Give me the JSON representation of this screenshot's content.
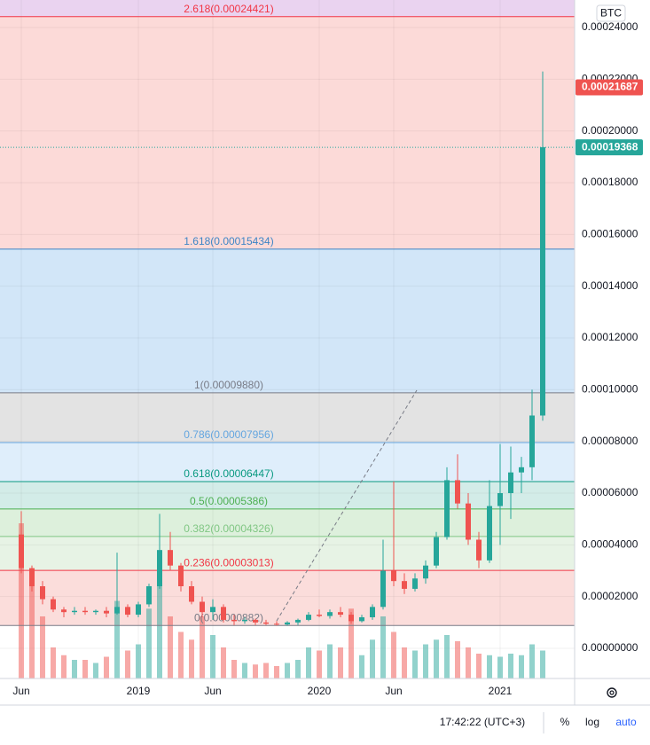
{
  "chart_data": {
    "type": "candlestick",
    "currency": "BTC",
    "categories": [
      "Jun",
      null,
      null,
      null,
      null,
      null,
      null,
      null,
      null,
      null,
      null,
      "2019",
      null,
      null,
      null,
      null,
      null,
      null,
      "Jun",
      null,
      null,
      null,
      null,
      null,
      null,
      null,
      null,
      null,
      "2020",
      null,
      null,
      null,
      null,
      null,
      null,
      "Jun",
      null,
      null,
      null,
      null,
      null,
      null,
      null,
      null,
      null,
      "2021",
      null,
      null,
      null,
      null
    ],
    "open": [
      4.4e-05,
      3.1e-05,
      2.4e-05,
      1.9e-05,
      1.5e-05,
      1.4e-05,
      1.45e-05,
      1.4e-05,
      1.45e-05,
      1.35e-05,
      1.6e-05,
      1.3e-05,
      1.7e-05,
      2.4e-05,
      3.8e-05,
      3.2e-05,
      2.4e-05,
      1.8e-05,
      1.4e-05,
      1.6e-05,
      1.1e-05,
      1.05e-05,
      1.1e-05,
      1e-05,
      9.5e-06,
      9.2e-06,
      1e-05,
      1.1e-05,
      1.3e-05,
      1.25e-05,
      1.4e-05,
      1.3e-05,
      1.05e-05,
      1.2e-05,
      1.6e-05,
      3e-05,
      2.6e-05,
      2.3e-05,
      2.7e-05,
      3.2e-05,
      4.3e-05,
      6.5e-05,
      5.6e-05,
      4.2e-05,
      3.4e-05,
      5.5e-05,
      6e-05,
      6.8e-05,
      7e-05,
      9e-05
    ],
    "high": [
      5.3e-05,
      3.2e-05,
      2.6e-05,
      2e-05,
      1.6e-05,
      1.6e-05,
      1.6e-05,
      1.5e-05,
      1.6e-05,
      3.7e-05,
      1.7e-05,
      1.8e-05,
      2.5e-05,
      5.2e-05,
      4.5e-05,
      3.3e-05,
      2.6e-05,
      2e-05,
      1.9e-05,
      1.7e-05,
      1.3e-05,
      1.2e-05,
      1.15e-05,
      1.1e-05,
      1.05e-05,
      1.05e-05,
      1.15e-05,
      1.4e-05,
      1.5e-05,
      1.5e-05,
      1.6e-05,
      1.4e-05,
      1.3e-05,
      1.7e-05,
      4.2e-05,
      6.45e-05,
      2.9e-05,
      2.9e-05,
      3.4e-05,
      4.5e-05,
      7e-05,
      7.5e-05,
      6e-05,
      4.5e-05,
      6.5e-05,
      7.9e-05,
      7.8e-05,
      7.4e-05,
      0.0001,
      0.000223
    ],
    "low": [
      2.9e-05,
      2.2e-05,
      1.7e-05,
      1.4e-05,
      1.2e-05,
      1.3e-05,
      1.3e-05,
      1.3e-05,
      1.2e-05,
      1.3e-05,
      1.2e-05,
      1.2e-05,
      1.6e-05,
      2.3e-05,
      3e-05,
      2.2e-05,
      1.7e-05,
      1.2e-05,
      1.1e-05,
      1e-05,
      9e-06,
      9.5e-06,
      9e-06,
      9e-06,
      8.8e-06,
      8.8e-06,
      9e-06,
      1.05e-05,
      1.2e-05,
      1.15e-05,
      1.2e-05,
      9.5e-06,
      1e-05,
      1.1e-05,
      1.5e-05,
      2.4e-05,
      2.1e-05,
      2.2e-05,
      2.5e-05,
      3.1e-05,
      4.2e-05,
      5.4e-05,
      4e-05,
      3.1e-05,
      3.3e-05,
      4e-05,
      5e-05,
      6e-05,
      6.5e-05,
      8.8e-05
    ],
    "close": [
      3.1e-05,
      2.4e-05,
      1.9e-05,
      1.5e-05,
      1.4e-05,
      1.45e-05,
      1.4e-05,
      1.45e-05,
      1.35e-05,
      1.6e-05,
      1.3e-05,
      1.7e-05,
      2.4e-05,
      3.8e-05,
      3.2e-05,
      2.4e-05,
      1.8e-05,
      1.4e-05,
      1.6e-05,
      1.1e-05,
      1.05e-05,
      1.1e-05,
      1e-05,
      9.5e-06,
      9.2e-06,
      1e-05,
      1.1e-05,
      1.3e-05,
      1.25e-05,
      1.4e-05,
      1.3e-05,
      1.05e-05,
      1.2e-05,
      1.6e-05,
      3e-05,
      2.6e-05,
      2.3e-05,
      2.7e-05,
      3.2e-05,
      4.3e-05,
      6.5e-05,
      5.6e-05,
      4.2e-05,
      3.4e-05,
      5.5e-05,
      6e-05,
      6.8e-05,
      7e-05,
      9e-05,
      0.0001937
    ],
    "volume": [
      100,
      60,
      40,
      20,
      15,
      12,
      12,
      10,
      14,
      50,
      18,
      22,
      45,
      60,
      40,
      30,
      25,
      40,
      28,
      20,
      12,
      10,
      9,
      10,
      8,
      10,
      12,
      20,
      18,
      22,
      20,
      45,
      15,
      25,
      40,
      30,
      20,
      18,
      22,
      25,
      28,
      24,
      20,
      16,
      15,
      14,
      16,
      15,
      22,
      18
    ],
    "up_color": "#26a69a",
    "down_color": "#ef5350",
    "ylim": [
      0,
      0.00024
    ],
    "yticks": [
      {
        "value": 0.00024,
        "label": "0.00024000"
      },
      {
        "value": 0.00022,
        "label": "0.00022000"
      },
      {
        "value": 0.0002,
        "label": "0.00020000"
      },
      {
        "value": 0.00018,
        "label": "0.00018000"
      },
      {
        "value": 0.00016,
        "label": "0.00016000"
      },
      {
        "value": 0.00014,
        "label": "0.00014000"
      },
      {
        "value": 0.00012,
        "label": "0.00012000"
      },
      {
        "value": 0.0001,
        "label": "0.00010000"
      },
      {
        "value": 8e-05,
        "label": "0.00008000"
      },
      {
        "value": 6e-05,
        "label": "0.00006000"
      },
      {
        "value": 4e-05,
        "label": "0.00004000"
      },
      {
        "value": 2e-05,
        "label": "0.00002000"
      },
      {
        "value": 0,
        "label": "0.00000000"
      }
    ],
    "grid": true,
    "top_fill": "#ead3f0",
    "fib_levels": [
      {
        "label": "2.618(0.00024421)",
        "value": 0.00024421,
        "color": "#f23645",
        "fill": "#fcdad8"
      },
      {
        "label": "1.618(0.00015434)",
        "value": 0.00015434,
        "color": "#3d85c6",
        "fill": "#d2e6f8"
      },
      {
        "label": "1(0.00009880)",
        "value": 9.88e-05,
        "color": "#787b86",
        "fill": "#e3e3e3"
      },
      {
        "label": "0.786(0.00007956)",
        "value": 7.956e-05,
        "color": "#64a6e0",
        "fill": "#dfeefb"
      },
      {
        "label": "0.618(0.00006447)",
        "value": 6.447e-05,
        "color": "#089981",
        "fill": "#d3ece8"
      },
      {
        "label": "0.5(0.00005386)",
        "value": 5.386e-05,
        "color": "#4caf50",
        "fill": "#ddf0dc"
      },
      {
        "label": "0.382(0.00004326)",
        "value": 4.326e-05,
        "color": "#81c784",
        "fill": "#e7f3e5"
      },
      {
        "label": "0.236(0.00003013)",
        "value": 3.013e-05,
        "color": "#f23645",
        "fill": "#fbdddb"
      },
      {
        "label": "0(0.00000882)",
        "value": 8.82e-06,
        "color": "#787b86",
        "fill": "#ffffff"
      }
    ],
    "price_tags": [
      {
        "value": 0.00021687,
        "label": "0.00021687",
        "color": "#ef5350"
      },
      {
        "value": 0.00019368,
        "label": "0.00019368",
        "color": "#26a69a"
      }
    ]
  },
  "toolbar": {
    "time": "17:42:22 (UTC+3)",
    "percent": "%",
    "log": "log",
    "auto": "auto"
  }
}
